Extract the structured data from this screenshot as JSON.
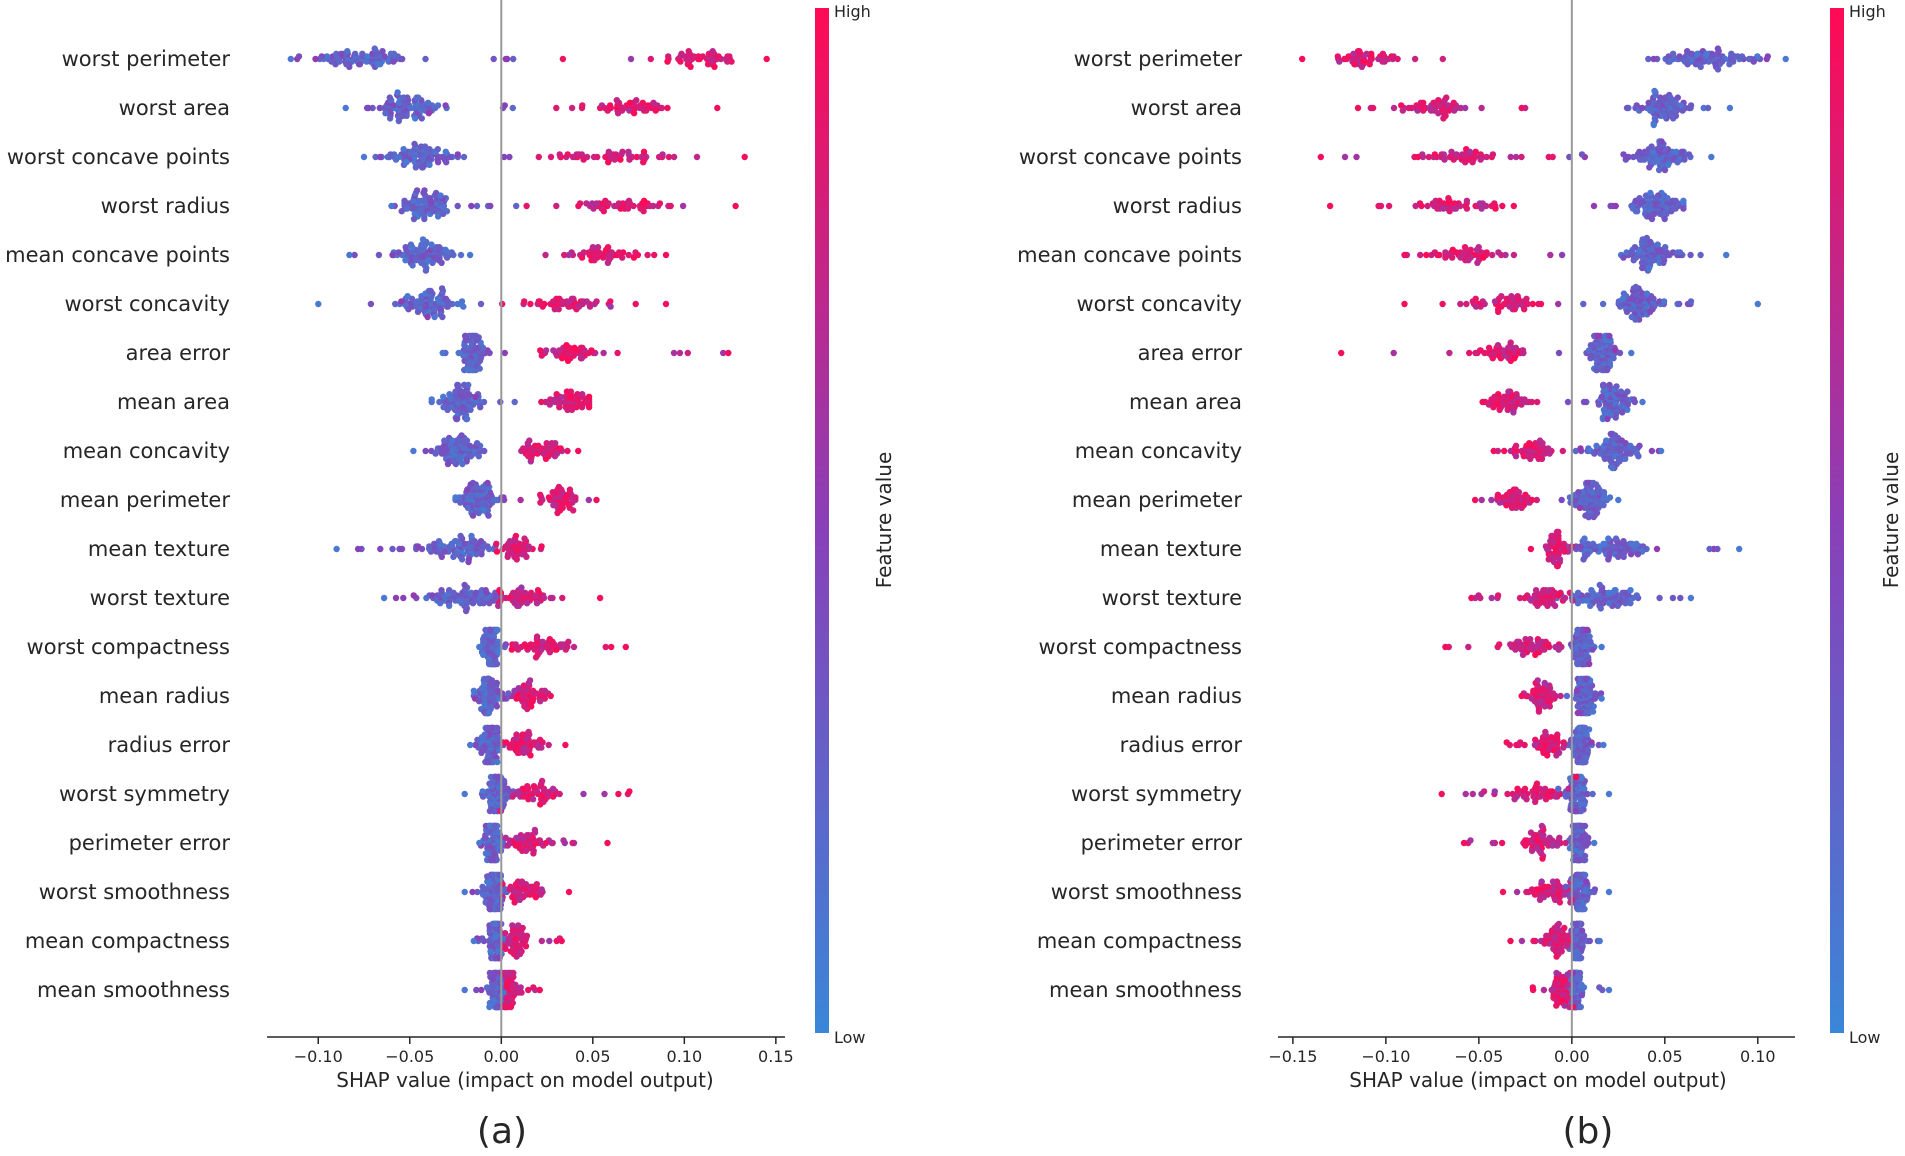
{
  "colors": {
    "low": "#3a86d8",
    "mid": "#8a3fb8",
    "high": "#ff0a54",
    "zero_line": "#999999",
    "axis": "#262626"
  },
  "chart_data": [
    {
      "type": "scatter",
      "subtype": "shap-beeswarm",
      "panel_label": "(a)",
      "xlabel": "SHAP value (impact on model output)",
      "xlim": [
        -0.128,
        0.155
      ],
      "xticks": [
        -0.1,
        -0.05,
        0.0,
        0.05,
        0.1,
        0.15
      ],
      "xtick_labels": [
        "−0.10",
        "−0.05",
        "0.00",
        "0.05",
        "0.10",
        "0.15"
      ],
      "colorbar": {
        "title": "Feature value",
        "high": "High",
        "low": "Low"
      },
      "features": [
        {
          "name": "worst perimeter",
          "low_center": -0.075,
          "low_spread": 0.022,
          "high_center": 0.11,
          "high_spread": 0.02,
          "min": -0.115,
          "max": 0.145
        },
        {
          "name": "worst area",
          "low_center": -0.052,
          "low_spread": 0.018,
          "high_center": 0.072,
          "high_spread": 0.02,
          "min": -0.085,
          "max": 0.118
        },
        {
          "name": "worst concave points",
          "low_center": -0.045,
          "low_spread": 0.016,
          "high_center": 0.062,
          "high_spread": 0.03,
          "min": -0.075,
          "max": 0.133
        },
        {
          "name": "worst radius",
          "low_center": -0.042,
          "low_spread": 0.014,
          "high_center": 0.068,
          "high_spread": 0.024,
          "min": -0.06,
          "max": 0.128
        },
        {
          "name": "mean concave points",
          "low_center": -0.042,
          "low_spread": 0.013,
          "high_center": 0.055,
          "high_spread": 0.018,
          "min": -0.083,
          "max": 0.09
        },
        {
          "name": "worst concavity",
          "low_center": -0.038,
          "low_spread": 0.015,
          "high_center": 0.035,
          "high_spread": 0.022,
          "min": -0.1,
          "max": 0.09
        },
        {
          "name": "area error",
          "low_center": -0.016,
          "low_spread": 0.006,
          "high_center": 0.035,
          "high_spread": 0.012,
          "min": -0.032,
          "max": 0.124
        },
        {
          "name": "mean area",
          "low_center": -0.022,
          "low_spread": 0.01,
          "high_center": 0.038,
          "high_spread": 0.01,
          "min": -0.038,
          "max": 0.048
        },
        {
          "name": "mean concavity",
          "low_center": -0.024,
          "low_spread": 0.012,
          "high_center": 0.022,
          "high_spread": 0.012,
          "min": -0.048,
          "max": 0.042
        },
        {
          "name": "mean perimeter",
          "low_center": -0.012,
          "low_spread": 0.01,
          "high_center": 0.032,
          "high_spread": 0.01,
          "min": -0.025,
          "max": 0.052
        },
        {
          "name": "mean texture",
          "low_center": -0.025,
          "low_spread": 0.02,
          "high_center": 0.008,
          "high_spread": 0.008,
          "min": -0.09,
          "max": 0.022
        },
        {
          "name": "worst texture",
          "low_center": -0.02,
          "low_spread": 0.018,
          "high_center": 0.013,
          "high_spread": 0.012,
          "min": -0.064,
          "max": 0.054
        },
        {
          "name": "worst compactness",
          "low_center": -0.006,
          "low_spread": 0.004,
          "high_center": 0.022,
          "high_spread": 0.014,
          "min": -0.012,
          "max": 0.068
        },
        {
          "name": "mean radius",
          "low_center": -0.007,
          "low_spread": 0.006,
          "high_center": 0.015,
          "high_spread": 0.008,
          "min": -0.015,
          "max": 0.027
        },
        {
          "name": "radius error",
          "low_center": -0.006,
          "low_spread": 0.005,
          "high_center": 0.012,
          "high_spread": 0.007,
          "min": -0.017,
          "max": 0.035
        },
        {
          "name": "worst symmetry",
          "low_center": -0.003,
          "low_spread": 0.006,
          "high_center": 0.018,
          "high_spread": 0.014,
          "min": -0.02,
          "max": 0.07
        },
        {
          "name": "perimeter error",
          "low_center": -0.004,
          "low_spread": 0.005,
          "high_center": 0.014,
          "high_spread": 0.01,
          "min": -0.012,
          "max": 0.058
        },
        {
          "name": "worst smoothness",
          "low_center": -0.004,
          "low_spread": 0.006,
          "high_center": 0.012,
          "high_spread": 0.01,
          "min": -0.02,
          "max": 0.037
        },
        {
          "name": "mean compactness",
          "low_center": -0.003,
          "low_spread": 0.004,
          "high_center": 0.008,
          "high_spread": 0.006,
          "min": -0.015,
          "max": 0.033
        },
        {
          "name": "mean smoothness",
          "low_center": -0.002,
          "low_spread": 0.004,
          "high_center": 0.006,
          "high_spread": 0.005,
          "min": -0.02,
          "max": 0.021
        }
      ]
    },
    {
      "type": "scatter",
      "subtype": "shap-beeswarm",
      "panel_label": "(b)",
      "xlabel": "SHAP value (impact on model output)",
      "xlim": [
        -0.158,
        0.12
      ],
      "xticks": [
        -0.15,
        -0.1,
        -0.05,
        0.0,
        0.05,
        0.1
      ],
      "xtick_labels": [
        "−0.15",
        "−0.10",
        "−0.05",
        "0.00",
        "0.05",
        "0.10"
      ],
      "colorbar": {
        "title": "Feature value",
        "high": "High",
        "low": "Low"
      },
      "features": [
        {
          "name": "worst perimeter",
          "low_center": 0.073,
          "low_spread": 0.02,
          "high_center": -0.112,
          "high_spread": 0.016,
          "min": -0.145,
          "max": 0.115
        },
        {
          "name": "worst area",
          "low_center": 0.05,
          "low_spread": 0.016,
          "high_center": -0.072,
          "high_spread": 0.016,
          "min": -0.115,
          "max": 0.085
        },
        {
          "name": "worst concave points",
          "low_center": 0.047,
          "low_spread": 0.015,
          "high_center": -0.06,
          "high_spread": 0.03,
          "min": -0.135,
          "max": 0.075
        },
        {
          "name": "worst radius",
          "low_center": 0.045,
          "low_spread": 0.013,
          "high_center": -0.065,
          "high_spread": 0.022,
          "min": -0.13,
          "max": 0.06
        },
        {
          "name": "mean concave points",
          "low_center": 0.042,
          "low_spread": 0.013,
          "high_center": -0.058,
          "high_spread": 0.017,
          "min": -0.09,
          "max": 0.083
        },
        {
          "name": "worst concavity",
          "low_center": 0.036,
          "low_spread": 0.013,
          "high_center": -0.035,
          "high_spread": 0.022,
          "min": -0.09,
          "max": 0.1
        },
        {
          "name": "area error",
          "low_center": 0.016,
          "low_spread": 0.006,
          "high_center": -0.037,
          "high_spread": 0.012,
          "min": -0.124,
          "max": 0.032
        },
        {
          "name": "mean area",
          "low_center": 0.022,
          "low_spread": 0.009,
          "high_center": -0.035,
          "high_spread": 0.01,
          "min": -0.048,
          "max": 0.038
        },
        {
          "name": "mean concavity",
          "low_center": 0.022,
          "low_spread": 0.011,
          "high_center": -0.022,
          "high_spread": 0.011,
          "min": -0.042,
          "max": 0.048
        },
        {
          "name": "mean perimeter",
          "low_center": 0.01,
          "low_spread": 0.008,
          "high_center": -0.03,
          "high_spread": 0.01,
          "min": -0.052,
          "max": 0.025
        },
        {
          "name": "mean texture",
          "low_center": 0.018,
          "low_spread": 0.02,
          "high_center": -0.008,
          "high_spread": 0.008,
          "min": -0.022,
          "max": 0.09
        },
        {
          "name": "worst texture",
          "low_center": 0.018,
          "low_spread": 0.016,
          "high_center": -0.015,
          "high_spread": 0.011,
          "min": -0.054,
          "max": 0.064
        },
        {
          "name": "worst compactness",
          "low_center": 0.006,
          "low_spread": 0.004,
          "high_center": -0.022,
          "high_spread": 0.014,
          "min": -0.068,
          "max": 0.016
        },
        {
          "name": "mean radius",
          "low_center": 0.007,
          "low_spread": 0.005,
          "high_center": -0.015,
          "high_spread": 0.007,
          "min": -0.027,
          "max": 0.016
        },
        {
          "name": "radius error",
          "low_center": 0.005,
          "low_spread": 0.004,
          "high_center": -0.012,
          "high_spread": 0.007,
          "min": -0.035,
          "max": 0.017
        },
        {
          "name": "worst symmetry",
          "low_center": 0.003,
          "low_spread": 0.005,
          "high_center": -0.018,
          "high_spread": 0.014,
          "min": -0.07,
          "max": 0.02
        },
        {
          "name": "perimeter error",
          "low_center": 0.004,
          "low_spread": 0.004,
          "high_center": -0.014,
          "high_spread": 0.01,
          "min": -0.058,
          "max": 0.012
        },
        {
          "name": "worst smoothness",
          "low_center": 0.004,
          "low_spread": 0.005,
          "high_center": -0.012,
          "high_spread": 0.01,
          "min": -0.037,
          "max": 0.02
        },
        {
          "name": "mean compactness",
          "low_center": 0.003,
          "low_spread": 0.003,
          "high_center": -0.008,
          "high_spread": 0.005,
          "min": -0.033,
          "max": 0.015
        },
        {
          "name": "mean smoothness",
          "low_center": 0.002,
          "low_spread": 0.003,
          "high_center": -0.006,
          "high_spread": 0.005,
          "min": -0.021,
          "max": 0.02
        }
      ]
    }
  ]
}
